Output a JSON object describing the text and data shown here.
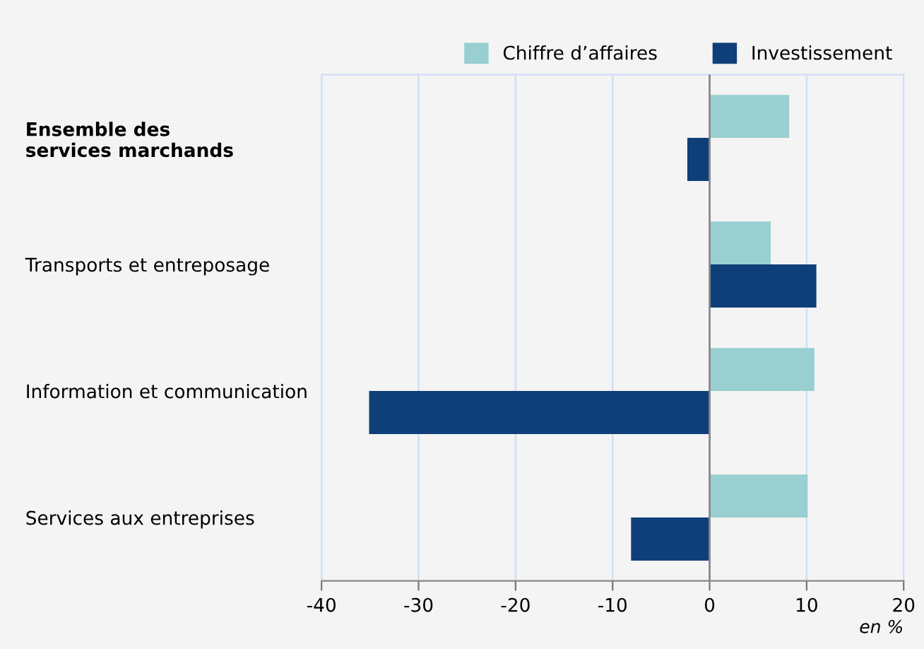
{
  "chart_data": {
    "type": "bar",
    "orientation": "horizontal",
    "categories": [
      "Ensemble des\nservices marchands",
      "Transports et entreposage",
      "Information et communication",
      "Services aux entreprises"
    ],
    "series": [
      {
        "name": "Chiffre d’affaires",
        "color": "#99cfd0",
        "values": [
          8.2,
          6.3,
          10.8,
          10.1
        ]
      },
      {
        "name": "Investissement",
        "color": "#0f3f78",
        "values": [
          -2.3,
          11.0,
          -35.1,
          -8.1
        ]
      }
    ],
    "xlim": [
      -40,
      20
    ],
    "xticks": [
      {
        "value": -40,
        "label": "-40"
      },
      {
        "value": -30,
        "label": "-30"
      },
      {
        "value": -20,
        "label": "-20"
      },
      {
        "value": -10,
        "label": "-10"
      },
      0,
      10,
      20
    ],
    "xlabel": "en %",
    "grid": "x",
    "legend": "top right"
  }
}
